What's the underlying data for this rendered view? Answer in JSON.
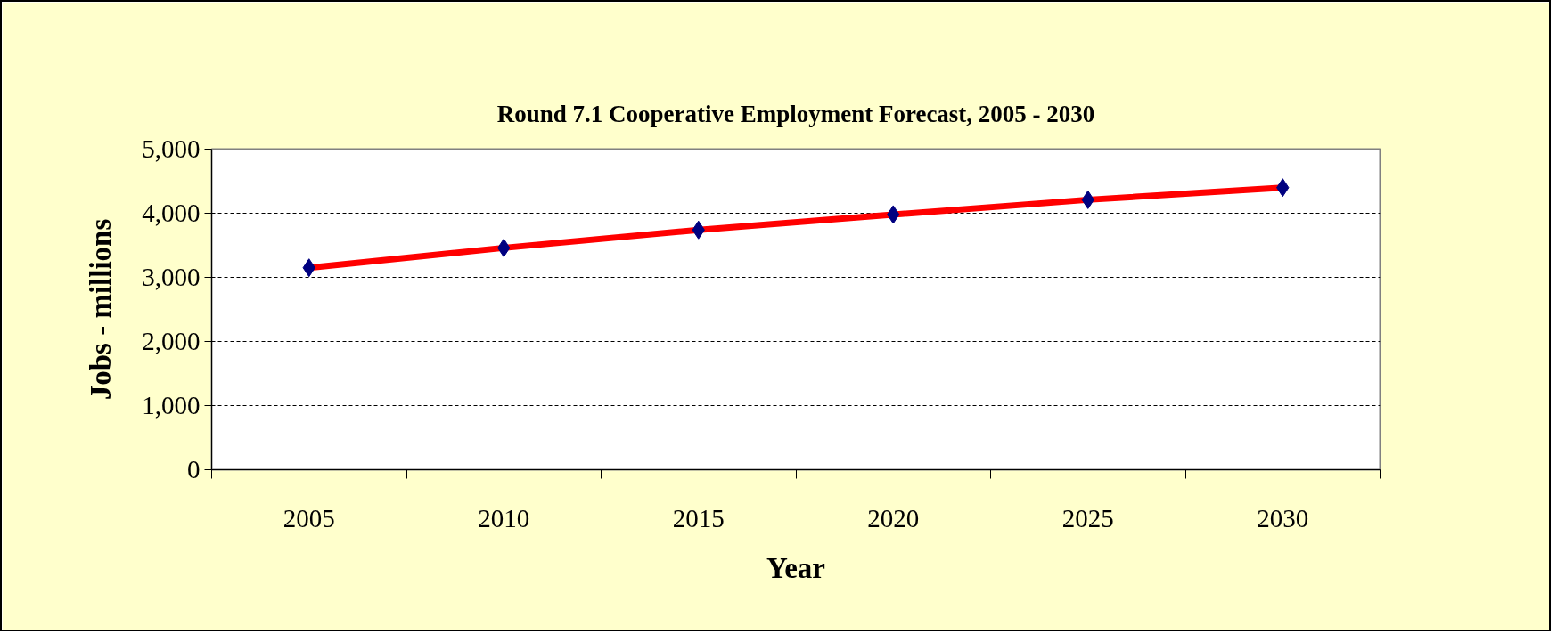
{
  "chart_data": {
    "type": "line",
    "title": "Round 7.1 Cooperative Employment Forecast, 2005 - 2030",
    "xlabel": "Year",
    "ylabel": "Jobs - millions",
    "categories": [
      "2005",
      "2010",
      "2015",
      "2020",
      "2025",
      "2030"
    ],
    "series": [
      {
        "color": "#ff0000",
        "values": [
          3150,
          3460,
          3740,
          3980,
          4210,
          4400
        ]
      }
    ],
    "marker": "diamond",
    "line_style": "solid",
    "ylim": [
      0,
      5000
    ],
    "yticks": [
      0,
      {
        "value": 1000,
        "label": "1,000"
      },
      {
        "value": 2000,
        "label": "2,000"
      },
      {
        "value": 3000,
        "label": "3,000"
      },
      {
        "value": 4000,
        "label": "4,000"
      },
      {
        "value": 5000,
        "label": "5,000"
      }
    ],
    "grid": "y"
  }
}
